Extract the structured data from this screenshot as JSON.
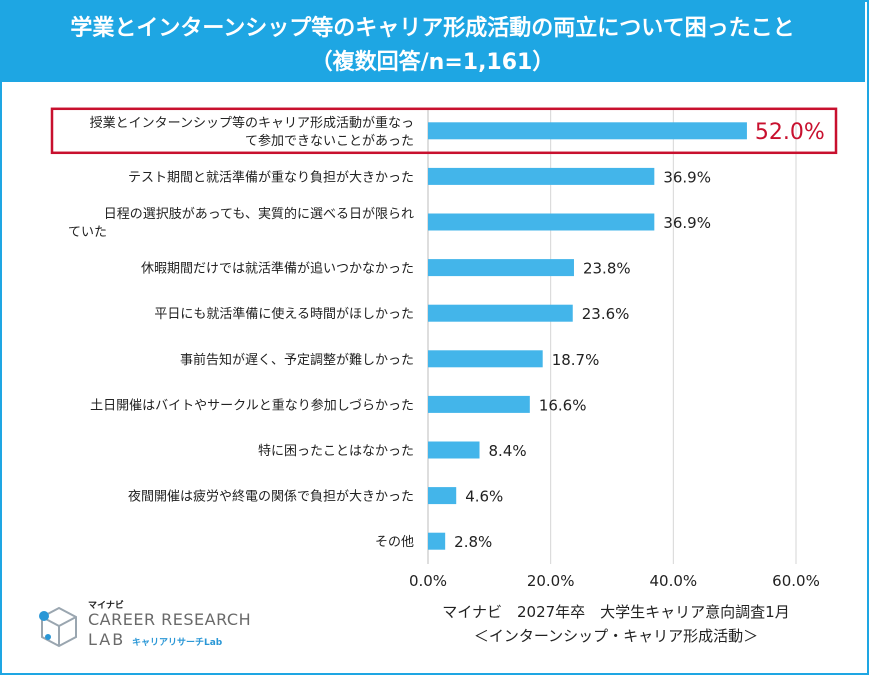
{
  "header": {
    "title_line1": "学業とインターンシップ等のキャリア形成活動の両立について困ったこと",
    "title_line2": "（複数回答/n=1,161）"
  },
  "source": {
    "line1": "マイナビ　2027年卒　大学生キャリア意向調査1月",
    "line2": "＜インターンシップ・キャリア形成活動＞"
  },
  "logo": {
    "small_text": "マイナビ",
    "name_line1": "CAREER RESEARCH",
    "name_line2": "LAB",
    "jp_text": "キャリアリサーチLab"
  },
  "chart_data": {
    "type": "bar",
    "orientation": "horizontal",
    "categories": [
      [
        "授業とインターンシップ等のキャリア形成活動が重なっ",
        "て参加できないことがあった"
      ],
      [
        "テスト期間と就活準備が重なり負担が大きかった"
      ],
      [
        "日程の選択肢があっても、実質的に選べる日が限られ",
        "ていた"
      ],
      [
        "休暇期間だけでは就活準備が追いつかなかった"
      ],
      [
        "平日にも就活準備に使える時間がほしかった"
      ],
      [
        "事前告知が遅く、予定調整が難しかった"
      ],
      [
        "土日開催はバイトやサークルと重なり参加しづらかった"
      ],
      [
        "特に困ったことはなかった"
      ],
      [
        "夜間開催は疲労や終電の関係で負担が大きかった"
      ],
      [
        "その他"
      ]
    ],
    "values": [
      52.0,
      36.9,
      36.9,
      23.8,
      23.6,
      18.7,
      16.6,
      8.4,
      4.6,
      2.8
    ],
    "value_labels": [
      "52.0%",
      "36.9%",
      "36.9%",
      "23.8%",
      "23.6%",
      "18.7%",
      "16.6%",
      "8.4%",
      "4.6%",
      "2.8%"
    ],
    "highlight_index": 0,
    "xlim": [
      0,
      60
    ],
    "xticks": [
      0,
      20,
      40,
      60
    ],
    "xtick_labels": [
      "0.0%",
      "20.0%",
      "40.0%",
      "60.0%"
    ],
    "grid": true,
    "bar_color": "#43b5ea",
    "highlight_color": "#c8102e",
    "grid_color": "#d6d6d6"
  }
}
